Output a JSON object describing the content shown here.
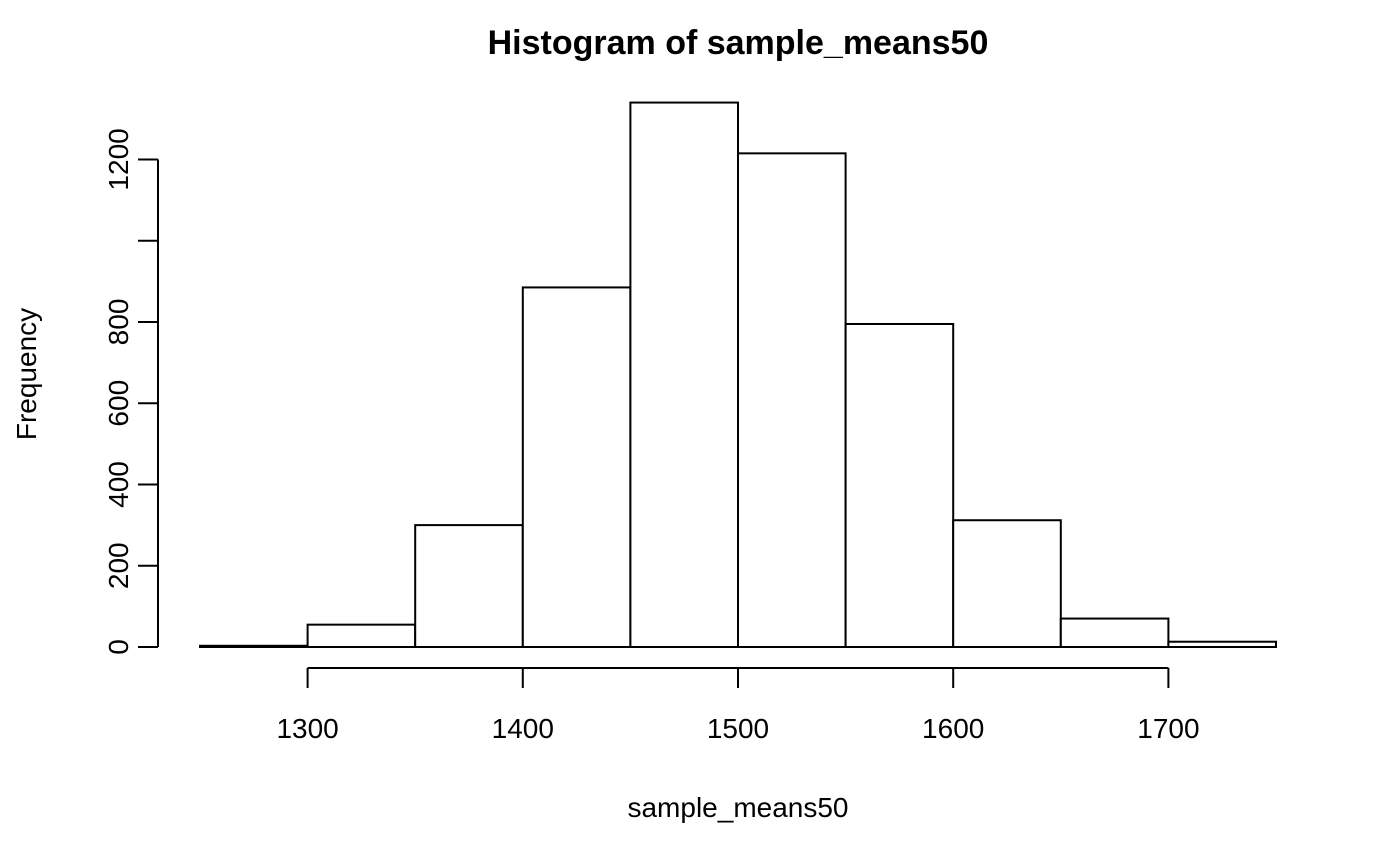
{
  "chart_data": {
    "type": "bar",
    "title": "Histogram of sample_means50",
    "xlabel": "sample_means50",
    "ylabel": "Frequency",
    "bins": [
      {
        "start": 1250,
        "end": 1300,
        "count": 3
      },
      {
        "start": 1300,
        "end": 1350,
        "count": 55
      },
      {
        "start": 1350,
        "end": 1400,
        "count": 300
      },
      {
        "start": 1400,
        "end": 1450,
        "count": 885
      },
      {
        "start": 1450,
        "end": 1500,
        "count": 1340
      },
      {
        "start": 1500,
        "end": 1550,
        "count": 1215
      },
      {
        "start": 1550,
        "end": 1600,
        "count": 795
      },
      {
        "start": 1600,
        "end": 1650,
        "count": 312
      },
      {
        "start": 1650,
        "end": 1700,
        "count": 70
      },
      {
        "start": 1700,
        "end": 1750,
        "count": 13
      }
    ],
    "xlim": [
      1250,
      1750
    ],
    "ylim": [
      0,
      1340
    ],
    "x_ticks": [
      1300,
      1400,
      1500,
      1600,
      1700
    ],
    "x_tick_labels": [
      "1300",
      "1400",
      "1500",
      "1600",
      "1700"
    ],
    "y_ticks": [
      0,
      200,
      400,
      600,
      800,
      1000,
      1200
    ],
    "y_tick_labels": [
      "0",
      "200",
      "400",
      "600",
      "800",
      "",
      "1200"
    ],
    "grid": false,
    "legend": "none"
  }
}
